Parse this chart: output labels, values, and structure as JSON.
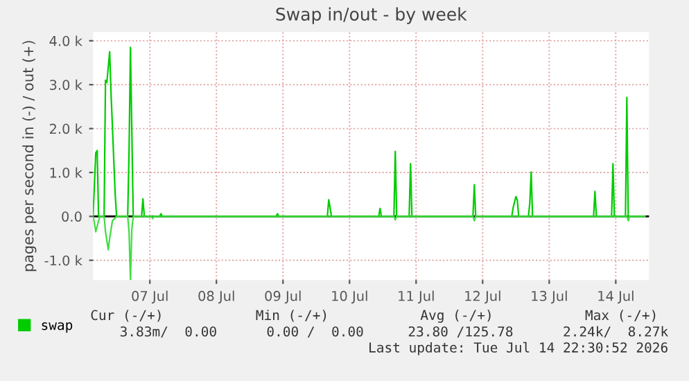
{
  "chart_data": {
    "type": "line",
    "title": "Swap in/out - by week",
    "ylabel": "pages per second in (-) / out (+)",
    "xlim": [
      "2026-07-06T15:30",
      "2026-07-15T00:00"
    ],
    "xticks": [
      {
        "value": "2026-07-07T12:00",
        "label": "07 Jul"
      },
      {
        "value": "2026-07-08T12:00",
        "label": "08 Jul"
      },
      {
        "value": "2026-07-09T12:00",
        "label": "09 Jul"
      },
      {
        "value": "2026-07-10T12:00",
        "label": "10 Jul"
      },
      {
        "value": "2026-07-11T12:00",
        "label": "11 Jul"
      },
      {
        "value": "2026-07-12T12:00",
        "label": "12 Jul"
      },
      {
        "value": "2026-07-13T12:00",
        "label": "13 Jul"
      },
      {
        "value": "2026-07-14T12:00",
        "label": "14 Jul"
      }
    ],
    "ylim": [
      -1450,
      4200
    ],
    "yticks": [
      {
        "value": -1000,
        "label": "-1.0 k"
      },
      {
        "value": 0,
        "label": "0.0"
      },
      {
        "value": 1000,
        "label": "1.0 k"
      },
      {
        "value": 2000,
        "label": "2.0 k"
      },
      {
        "value": 3000,
        "label": "3.0 k"
      },
      {
        "value": 4000,
        "label": "4.0 k"
      }
    ],
    "grid": true,
    "legend": "bottom left",
    "marker": "none",
    "line_style": "solid",
    "ref_lines": [
      {
        "axis": "y",
        "value": 0,
        "color": "#000000"
      }
    ],
    "series": [
      {
        "name": "swap",
        "color": "#00cc00",
        "x": [
          "2026-07-06T15:30",
          "2026-07-06T16:30",
          "2026-07-06T17:00",
          "2026-07-06T17:30",
          "2026-07-06T19:30",
          "2026-07-06T20:00",
          "2026-07-06T20:30",
          "2026-07-06T21:30",
          "2026-07-06T22:00",
          "2026-07-06T22:30",
          "2026-07-06T23:00",
          "2026-07-06T23:30",
          "2026-07-07T00:00",
          "2026-07-07T04:00",
          "2026-07-07T04:30",
          "2026-07-07T05:00",
          "2026-07-07T06:00",
          "2026-07-07T09:00",
          "2026-07-07T09:30",
          "2026-07-07T10:00",
          "2026-07-07T15:30",
          "2026-07-07T16:00",
          "2026-07-07T16:30",
          "2026-07-09T09:30",
          "2026-07-09T10:00",
          "2026-07-09T10:30",
          "2026-07-10T04:00",
          "2026-07-10T04:30",
          "2026-07-10T05:30",
          "2026-07-10T22:30",
          "2026-07-10T23:00",
          "2026-07-10T23:30",
          "2026-07-11T04:00",
          "2026-07-11T04:30",
          "2026-07-11T05:00",
          "2026-07-11T09:30",
          "2026-07-11T10:00",
          "2026-07-11T10:30",
          "2026-07-12T08:30",
          "2026-07-12T09:00",
          "2026-07-12T09:30",
          "2026-07-12T22:30",
          "2026-07-12T23:00",
          "2026-07-13T00:00",
          "2026-07-13T00:30",
          "2026-07-13T01:00",
          "2026-07-13T04:30",
          "2026-07-13T05:00",
          "2026-07-13T05:30",
          "2026-07-13T06:00",
          "2026-07-14T04:00",
          "2026-07-14T04:30",
          "2026-07-14T05:00",
          "2026-07-14T10:30",
          "2026-07-14T11:00",
          "2026-07-14T11:30",
          "2026-07-14T15:30",
          "2026-07-14T16:00",
          "2026-07-14T16:30",
          "2026-07-14T22:30"
        ],
        "values": [
          0,
          1450,
          1500,
          0,
          0,
          3100,
          3050,
          3750,
          2800,
          2050,
          1250,
          500,
          0,
          0,
          1500,
          3850,
          0,
          0,
          400,
          0,
          0,
          60,
          0,
          0,
          60,
          0,
          0,
          380,
          0,
          0,
          180,
          0,
          0,
          1480,
          0,
          0,
          1200,
          0,
          0,
          720,
          0,
          0,
          200,
          450,
          370,
          0,
          0,
          300,
          1010,
          0,
          0,
          570,
          0,
          0,
          1200,
          0,
          0,
          2710,
          0,
          0
        ]
      },
      {
        "color": "#40dd40",
        "x": [
          "2026-07-06T15:30",
          "2026-07-06T16:00",
          "2026-07-06T16:30",
          "2026-07-06T17:30",
          "2026-07-06T18:00",
          "2026-07-06T19:30",
          "2026-07-06T20:00",
          "2026-07-06T21:00",
          "2026-07-06T21:30",
          "2026-07-06T22:30",
          "2026-07-07T00:00",
          "2026-07-07T04:00",
          "2026-07-07T04:30",
          "2026-07-07T05:00",
          "2026-07-07T05:30",
          "2026-07-07T06:00",
          "2026-07-07T12:30",
          "2026-07-07T13:00",
          "2026-07-07T13:30",
          "2026-07-11T04:00",
          "2026-07-11T04:30",
          "2026-07-11T05:00",
          "2026-07-12T08:30",
          "2026-07-12T09:00",
          "2026-07-12T09:30",
          "2026-07-14T16:00",
          "2026-07-14T16:30",
          "2026-07-14T17:00",
          "2026-07-14T22:30"
        ],
        "values": [
          0,
          -150,
          -350,
          -100,
          0,
          0,
          -350,
          -760,
          -500,
          -100,
          0,
          0,
          -350,
          -1450,
          -300,
          0,
          0,
          -50,
          0,
          0,
          -80,
          0,
          0,
          -100,
          0,
          0,
          -100,
          0,
          0
        ]
      }
    ],
    "annotations": [
      "Cur (-/+)",
      "Min (-/+)",
      "Avg (-/+)",
      "Max (-/+)",
      "3.83m/  0.00",
      "0.00 /  0.00",
      "23.80 /125.78",
      "2.24k/  8.27k",
      "Last update: Tue Jul 14 22:30:52 2026"
    ]
  }
}
